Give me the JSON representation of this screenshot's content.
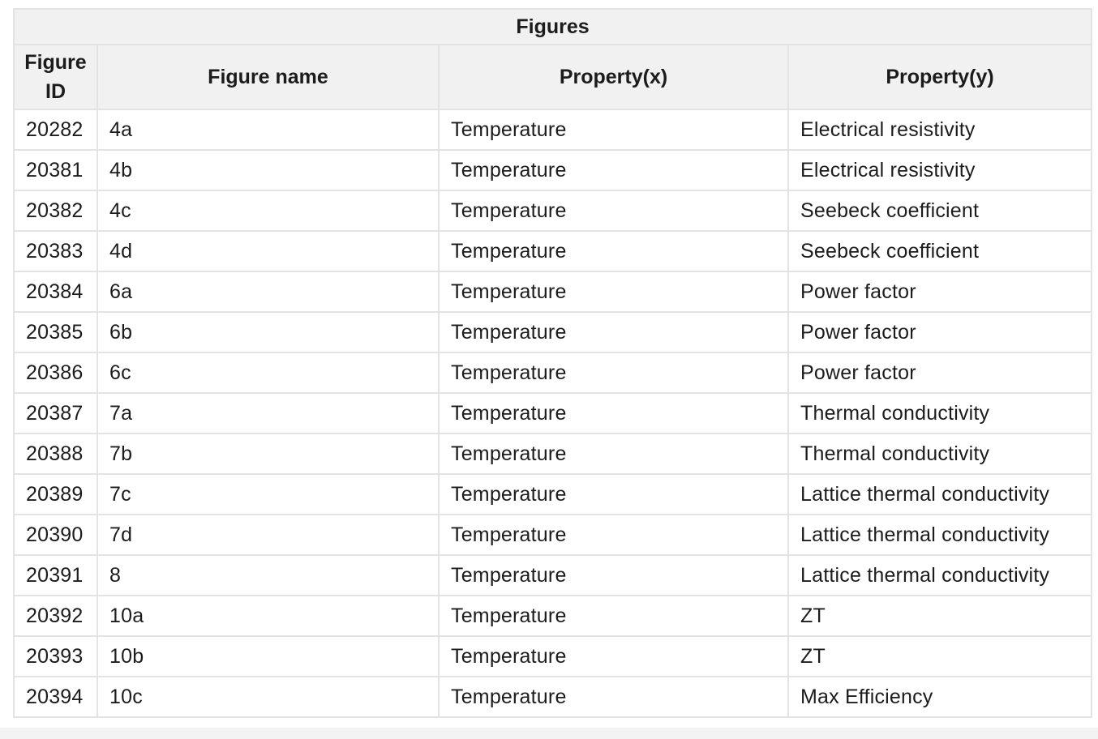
{
  "table": {
    "caption": "Figures",
    "headers": {
      "figure_id_line1": "Figure",
      "figure_id_line2": "ID",
      "figure_name": "Figure name",
      "property_x": "Property(x)",
      "property_y": "Property(y)"
    },
    "rows": [
      {
        "id": "20282",
        "name": "4a",
        "x": "Temperature",
        "y": "Electrical resistivity"
      },
      {
        "id": "20381",
        "name": "4b",
        "x": "Temperature",
        "y": "Electrical resistivity"
      },
      {
        "id": "20382",
        "name": "4c",
        "x": "Temperature",
        "y": "Seebeck coefficient"
      },
      {
        "id": "20383",
        "name": "4d",
        "x": "Temperature",
        "y": "Seebeck coefficient"
      },
      {
        "id": "20384",
        "name": "6a",
        "x": "Temperature",
        "y": "Power factor"
      },
      {
        "id": "20385",
        "name": "6b",
        "x": "Temperature",
        "y": "Power factor"
      },
      {
        "id": "20386",
        "name": "6c",
        "x": "Temperature",
        "y": "Power factor"
      },
      {
        "id": "20387",
        "name": "7a",
        "x": "Temperature",
        "y": "Thermal conductivity"
      },
      {
        "id": "20388",
        "name": "7b",
        "x": "Temperature",
        "y": "Thermal conductivity"
      },
      {
        "id": "20389",
        "name": "7c",
        "x": "Temperature",
        "y": "Lattice thermal conductivity"
      },
      {
        "id": "20390",
        "name": "7d",
        "x": "Temperature",
        "y": "Lattice thermal conductivity"
      },
      {
        "id": "20391",
        "name": "8",
        "x": "Temperature",
        "y": "Lattice thermal conductivity"
      },
      {
        "id": "20392",
        "name": "10a",
        "x": "Temperature",
        "y": "ZT"
      },
      {
        "id": "20393",
        "name": "10b",
        "x": "Temperature",
        "y": "ZT"
      },
      {
        "id": "20394",
        "name": "10c",
        "x": "Temperature",
        "y": "Max Efficiency"
      }
    ]
  }
}
